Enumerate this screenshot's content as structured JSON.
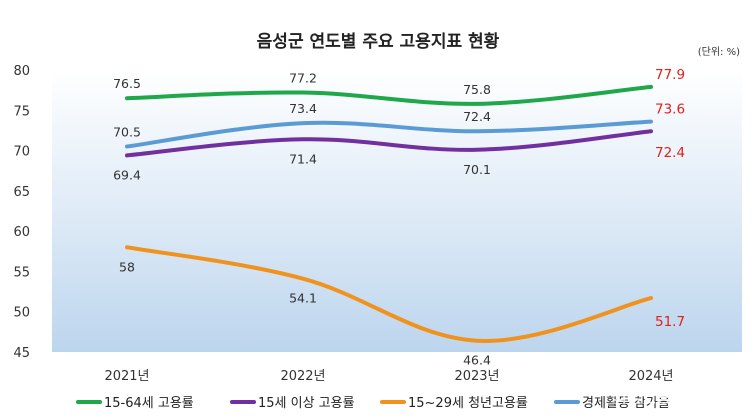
{
  "chart_data": {
    "type": "line",
    "title": "음성군 연도별 주요 고용지표 현황",
    "unit_note": "(단위: %)",
    "categories": [
      "2021년",
      "2022년",
      "2023년",
      "2024년"
    ],
    "ylim": [
      45,
      80
    ],
    "yticks": [
      45,
      50,
      55,
      60,
      65,
      70,
      75,
      80
    ],
    "series": [
      {
        "name": "15-64세 고용률",
        "color": "#1fa84a",
        "values": [
          76.5,
          77.2,
          75.8,
          77.9
        ],
        "label_pos": "above"
      },
      {
        "name": "15세 이상 고용률",
        "color": "#7030a0",
        "values": [
          69.4,
          71.4,
          70.1,
          72.4
        ],
        "label_pos": "below"
      },
      {
        "name": "15~29세 청년고용률",
        "color": "#f0921e",
        "values": [
          58,
          54.1,
          46.4,
          51.7
        ],
        "label_pos": "below"
      },
      {
        "name": "경제활동 참가율",
        "color": "#5b9bd5",
        "values": [
          70.5,
          73.4,
          72.4,
          73.6
        ],
        "label_pos": "above"
      }
    ],
    "highlight_last_color": "#e0201b",
    "legend_position": "bottom",
    "grid": false
  },
  "watermark": "외국인통신(이코노미"
}
